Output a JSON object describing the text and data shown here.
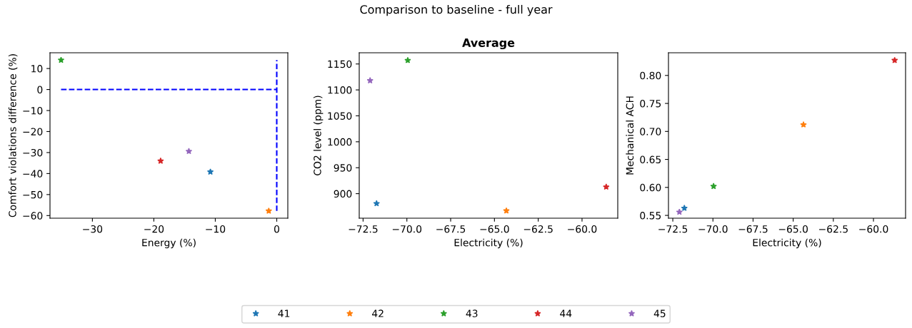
{
  "chart_data": [
    {
      "type": "scatter",
      "annotations": [
        "Comparison to baseline - full year"
      ],
      "xlabel": "Energy (%)",
      "ylabel": "Comfort violations difference (%)",
      "marker": "star",
      "legend": "bottom",
      "grid": false,
      "xlim": [
        -36.9,
        1.8
      ],
      "xticks": [
        {
          "value": -30,
          "label": "−30"
        },
        {
          "value": -20,
          "label": "−20"
        },
        {
          "value": -10,
          "label": "−10"
        },
        0
      ],
      "ylim": [
        -61.25,
        17.5
      ],
      "yticks": [
        {
          "value": -60,
          "label": "−60"
        },
        {
          "value": -50,
          "label": "−50"
        },
        {
          "value": -40,
          "label": "−40"
        },
        {
          "value": -30,
          "label": "−30"
        },
        {
          "value": -20,
          "label": "−20"
        },
        {
          "value": -10,
          "label": "−10"
        },
        0,
        10
      ],
      "series": [
        {
          "name": "41",
          "color": "#1f77b4",
          "x": [
            -10.8
          ],
          "values": [
            -39.2
          ]
        },
        {
          "name": "42",
          "color": "#ff7f0e",
          "x": [
            -1.3
          ],
          "values": [
            -57.8
          ]
        },
        {
          "name": "43",
          "color": "#2ca02c",
          "x": [
            -35.1
          ],
          "values": [
            14.0
          ]
        },
        {
          "name": "44",
          "color": "#d62728",
          "x": [
            -18.9
          ],
          "values": [
            -34.0
          ]
        },
        {
          "name": "45",
          "color": "#9467bd",
          "x": [
            -14.3
          ],
          "values": [
            -29.4
          ]
        },
        {
          "type": "line",
          "color": "#0000ff",
          "line_style": "dashed",
          "marker": "none",
          "x": [
            -35.1,
            0
          ],
          "values": [
            0,
            0
          ]
        },
        {
          "type": "line",
          "color": "#0000ff",
          "line_style": "dashed",
          "marker": "none",
          "x": [
            0,
            0
          ],
          "values": [
            -57.8,
            14.0
          ]
        }
      ]
    },
    {
      "type": "scatter",
      "title": "Average",
      "xlabel": "Electricity (%)",
      "ylabel": "CO2 level (ppm)",
      "marker": "star",
      "grid": false,
      "xlim": [
        -72.72,
        -57.96
      ],
      "xticks": [
        {
          "value": -72.5,
          "label": "−72.5"
        },
        {
          "value": -70,
          "label": "−70.0"
        },
        {
          "value": -67.5,
          "label": "−67.5"
        },
        {
          "value": -65,
          "label": "−65.0"
        },
        {
          "value": -62.5,
          "label": "−62.5"
        },
        {
          "value": -60,
          "label": "−60.0"
        }
      ],
      "ylim": [
        852.7,
        1171.6
      ],
      "yticks": [
        900,
        950,
        1000,
        1050,
        1100,
        1150
      ],
      "series": [
        {
          "color": "#1f77b4",
          "x": [
            -71.73
          ],
          "values": [
            881
          ]
        },
        {
          "color": "#ff7f0e",
          "x": [
            -64.32
          ],
          "values": [
            867
          ]
        },
        {
          "color": "#2ca02c",
          "x": [
            -69.95
          ],
          "values": [
            1157
          ]
        },
        {
          "color": "#d62728",
          "x": [
            -58.62
          ],
          "values": [
            913
          ]
        },
        {
          "color": "#9467bd",
          "x": [
            -72.1
          ],
          "values": [
            1118
          ]
        }
      ]
    },
    {
      "type": "scatter",
      "xlabel": "Electricity (%)",
      "ylabel": "Mechanical ACH",
      "marker": "star",
      "grid": false,
      "xlim": [
        -72.77,
        -58.0
      ],
      "xticks": [
        {
          "value": -72.5,
          "label": "−72.5"
        },
        {
          "value": -70,
          "label": "−70.0"
        },
        {
          "value": -67.5,
          "label": "−67.5"
        },
        {
          "value": -65,
          "label": "−65.0"
        },
        {
          "value": -62.5,
          "label": "−62.5"
        },
        {
          "value": -60,
          "label": "−60.0"
        }
      ],
      "ylim": [
        0.545,
        0.8405
      ],
      "yticks": [
        {
          "value": 0.55,
          "label": "0.55"
        },
        {
          "value": 0.6,
          "label": "0.60"
        },
        {
          "value": 0.65,
          "label": "0.65"
        },
        {
          "value": 0.7,
          "label": "0.70"
        },
        {
          "value": 0.75,
          "label": "0.75"
        },
        {
          "value": 0.8,
          "label": "0.80"
        }
      ],
      "series": [
        {
          "color": "#1f77b4",
          "x": [
            -71.78
          ],
          "values": [
            0.563
          ]
        },
        {
          "color": "#ff7f0e",
          "x": [
            -64.36
          ],
          "values": [
            0.712
          ]
        },
        {
          "color": "#2ca02c",
          "x": [
            -69.96
          ],
          "values": [
            0.602
          ]
        },
        {
          "color": "#d62728",
          "x": [
            -58.68
          ],
          "values": [
            0.827
          ]
        },
        {
          "color": "#9467bd",
          "x": [
            -72.09
          ],
          "values": [
            0.556
          ]
        }
      ]
    }
  ]
}
